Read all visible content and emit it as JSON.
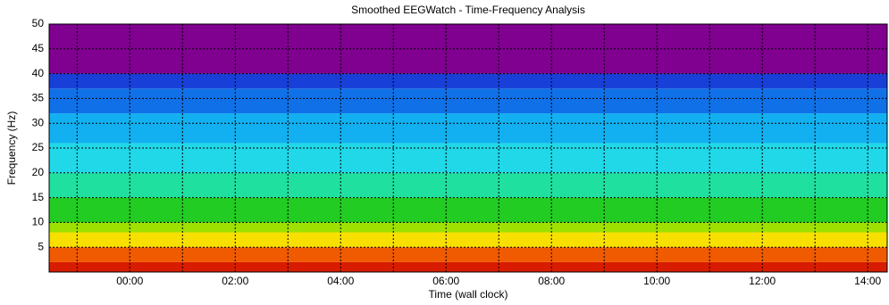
{
  "chart_data": {
    "type": "spectrogram",
    "title": "Smoothed EEGWatch  -  Time-Frequency Analysis",
    "x_label": "Time (wall clock)",
    "y_label": "Frequency (Hz)",
    "xlim": [
      -1.53,
      14.37
    ],
    "xticks": [
      {
        "value": 0,
        "label": "00:00"
      },
      {
        "value": 2,
        "label": "02:00"
      },
      {
        "value": 4,
        "label": "04:00"
      },
      {
        "value": 6,
        "label": "06:00"
      },
      {
        "value": 8,
        "label": "08:00"
      },
      {
        "value": 10,
        "label": "10:00"
      },
      {
        "value": 12,
        "label": "12:00"
      },
      {
        "value": 14,
        "label": "14:00"
      }
    ],
    "xgrid_minor": [
      -1,
      1,
      3,
      5,
      7,
      9,
      11,
      13
    ],
    "ylim": [
      0,
      50
    ],
    "yticks": [
      5,
      10,
      15,
      20,
      25,
      30,
      35,
      40,
      45,
      50
    ],
    "grid": true,
    "bands": [
      {
        "range": [
          0,
          2
        ],
        "color": "#d81c00"
      },
      {
        "range": [
          2,
          5
        ],
        "color": "#f05a00"
      },
      {
        "range": [
          5,
          8
        ],
        "color": "#f7e000"
      },
      {
        "range": [
          8,
          10
        ],
        "color": "#9ee000"
      },
      {
        "range": [
          10,
          15
        ],
        "color": "#22cc22"
      },
      {
        "range": [
          15,
          20
        ],
        "color": "#20e0a0"
      },
      {
        "range": [
          20,
          26
        ],
        "color": "#20d8e8"
      },
      {
        "range": [
          26,
          32
        ],
        "color": "#12b0f0"
      },
      {
        "range": [
          32,
          37
        ],
        "color": "#1070e8"
      },
      {
        "range": [
          37,
          40
        ],
        "color": "#1840d8"
      },
      {
        "range": [
          40,
          50
        ],
        "color": "#800090"
      }
    ]
  }
}
